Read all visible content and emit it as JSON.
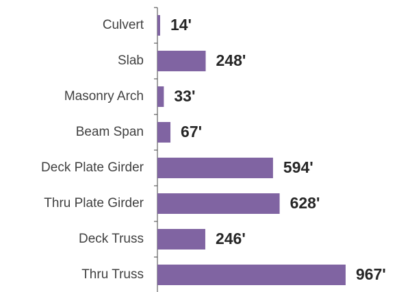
{
  "chart_data": {
    "type": "bar",
    "orientation": "horizontal",
    "categories": [
      "Culvert",
      "Slab",
      "Masonry Arch",
      "Beam Span",
      "Deck Plate Girder",
      "Thru Plate Girder",
      "Deck Truss",
      "Thru Truss"
    ],
    "values": [
      14,
      248,
      33,
      67,
      594,
      628,
      246,
      967
    ],
    "value_labels": [
      "14'",
      "248'",
      "33'",
      "67'",
      "594'",
      "628'",
      "246'",
      "967'"
    ],
    "color": "#8064a2"
  }
}
